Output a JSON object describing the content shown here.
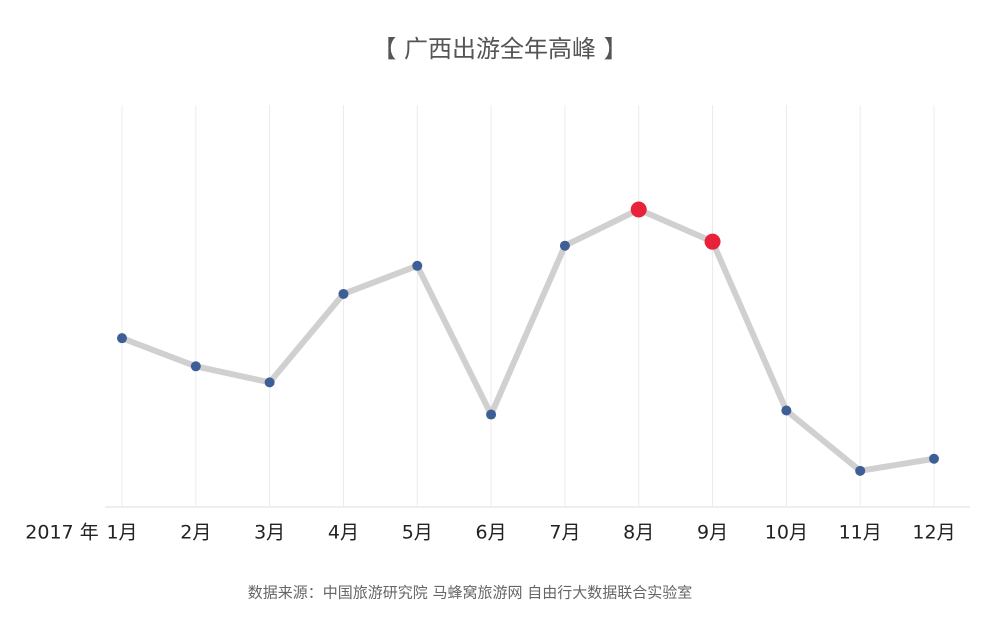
{
  "chart_data": {
    "type": "line",
    "title": "【 广西出游全年高峰 】",
    "year_label": "2017 年",
    "categories": [
      "1月",
      "2月",
      "3月",
      "4月",
      "5月",
      "6月",
      "7月",
      "8月",
      "9月",
      "10月",
      "11月",
      "12月"
    ],
    "values": [
      42,
      35,
      31,
      53,
      60,
      23,
      65,
      74,
      66,
      24,
      9,
      12
    ],
    "line_color": "#d0d0d0",
    "point_color": "#3e5f96",
    "highlight_color": "#e8223a",
    "highlight_indices": [
      7,
      8
    ],
    "ylim": [
      0,
      100
    ],
    "grid": true,
    "source": "数据来源：中国旅游研究院 马蜂窝旅游网 自由行大数据联合实验室"
  }
}
